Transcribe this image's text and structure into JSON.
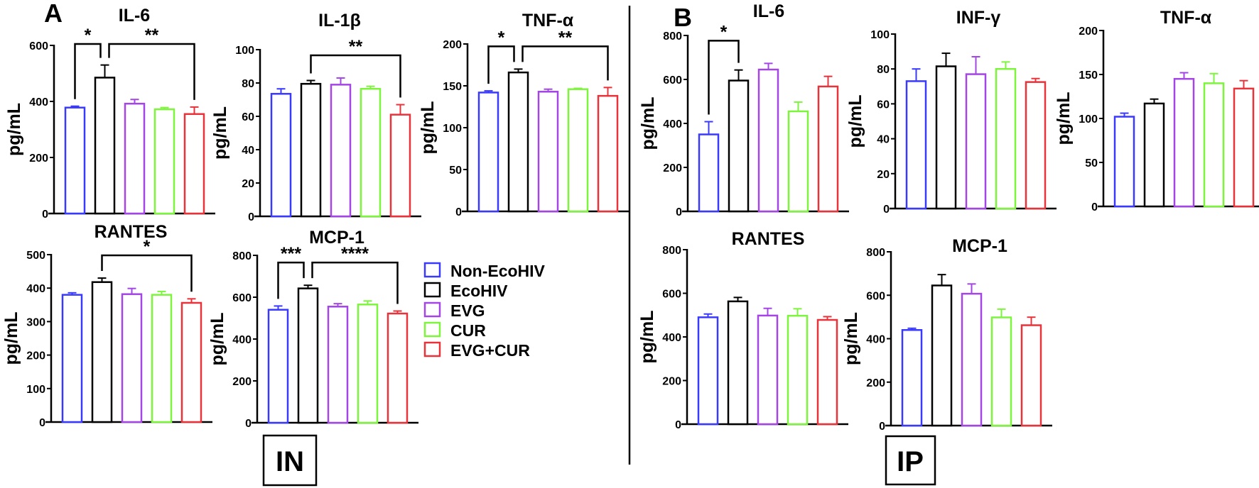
{
  "panels": {
    "a": "A",
    "b": "B"
  },
  "box_labels": {
    "a": "IN",
    "b": "IP"
  },
  "legend": [
    {
      "label": "Non-EcoHIV",
      "color": "#3a3aff"
    },
    {
      "label": "EcoHIV",
      "color": "#000000"
    },
    {
      "label": "EVG",
      "color": "#a445e6"
    },
    {
      "label": "CUR",
      "color": "#7cf53c"
    },
    {
      "label": "EVG+CUR",
      "color": "#e8333b"
    }
  ],
  "chart_data": [
    {
      "type": "bar",
      "panel": "A",
      "title": "IL-6",
      "ylabel": "pg/mL",
      "ylim": [
        0,
        600
      ],
      "yticks": [
        "0",
        "200",
        "400",
        "600"
      ],
      "categories": [
        "Non-EcoHIV",
        "EcoHIV",
        "EVG",
        "CUR",
        "EVG+CUR"
      ],
      "values": [
        378,
        485,
        392,
        372,
        355
      ],
      "errors": [
        5,
        45,
        15,
        6,
        25
      ],
      "significance": [
        {
          "from": 0,
          "to": 1,
          "label": "*"
        },
        {
          "from": 1,
          "to": 4,
          "label": "**"
        }
      ]
    },
    {
      "type": "bar",
      "panel": "A",
      "title": "IL-1β",
      "ylabel": "pg/mL",
      "ylim": [
        0,
        100
      ],
      "yticks": [
        "0",
        "20",
        "40",
        "60",
        "80",
        "100"
      ],
      "categories": [
        "Non-EcoHIV",
        "EcoHIV",
        "EVG",
        "CUR",
        "EVG+CUR"
      ],
      "values": [
        73.5,
        79.5,
        79,
        76.5,
        61
      ],
      "errors": [
        3,
        2,
        4,
        1.5,
        6
      ],
      "significance": [
        {
          "from": 1,
          "to": 4,
          "label": "**"
        }
      ]
    },
    {
      "type": "bar",
      "panel": "A",
      "title": "TNF-α",
      "ylabel": "pg/mL",
      "ylim": [
        0,
        200
      ],
      "yticks": [
        "0",
        "50",
        "100",
        "150",
        "200"
      ],
      "categories": [
        "Non-EcoHIV",
        "EcoHIV",
        "EVG",
        "CUR",
        "EVG+CUR"
      ],
      "values": [
        142,
        166,
        143,
        146,
        138
      ],
      "errors": [
        2,
        4,
        3,
        1,
        10
      ],
      "significance": [
        {
          "from": 0,
          "to": 1,
          "label": "*"
        },
        {
          "from": 1,
          "to": 4,
          "label": "**"
        }
      ]
    },
    {
      "type": "bar",
      "panel": "A",
      "title": "RANTES",
      "ylabel": "pg/mL",
      "ylim": [
        0,
        500
      ],
      "yticks": [
        "0",
        "100",
        "200",
        "300",
        "400",
        "500"
      ],
      "categories": [
        "Non-EcoHIV",
        "EcoHIV",
        "EVG",
        "CUR",
        "EVG+CUR"
      ],
      "values": [
        380,
        418,
        382,
        380,
        356
      ],
      "errors": [
        6,
        12,
        17,
        10,
        12
      ],
      "significance": [
        {
          "from": 1,
          "to": 4,
          "label": "*"
        }
      ]
    },
    {
      "type": "bar",
      "panel": "A",
      "title": "MCP-1",
      "ylabel": "pg/mL",
      "ylim": [
        0,
        800
      ],
      "yticks": [
        "0",
        "200",
        "400",
        "600",
        "800"
      ],
      "categories": [
        "Non-EcoHIV",
        "EcoHIV",
        "EVG",
        "CUR",
        "EVG+CUR"
      ],
      "values": [
        540,
        642,
        555,
        565,
        522
      ],
      "errors": [
        18,
        15,
        14,
        17,
        12
      ],
      "significance": [
        {
          "from": 0,
          "to": 1,
          "label": "***"
        },
        {
          "from": 1,
          "to": 4,
          "label": "****"
        }
      ]
    },
    {
      "type": "bar",
      "panel": "B",
      "title": "IL-6",
      "ylabel": "pg/mL",
      "ylim": [
        0,
        800
      ],
      "yticks": [
        "0",
        "200",
        "400",
        "600",
        "800"
      ],
      "categories": [
        "Non-EcoHIV",
        "EcoHIV",
        "EVG",
        "CUR",
        "EVG+CUR"
      ],
      "values": [
        350,
        595,
        645,
        455,
        568
      ],
      "errors": [
        58,
        48,
        28,
        42,
        46
      ],
      "significance": [
        {
          "from": 0,
          "to": 1,
          "label": "*"
        }
      ]
    },
    {
      "type": "bar",
      "panel": "B",
      "title": "INF-γ",
      "ylabel": "pg/mL",
      "ylim": [
        0,
        100
      ],
      "yticks": [
        "0",
        "20",
        "40",
        "60",
        "80",
        "100"
      ],
      "categories": [
        "Non-EcoHIV",
        "EcoHIV",
        "EVG",
        "CUR",
        "EVG+CUR"
      ],
      "values": [
        73,
        81.5,
        77,
        80,
        72.5
      ],
      "errors": [
        7,
        7.5,
        10,
        4,
        2
      ],
      "significance": []
    },
    {
      "type": "bar",
      "panel": "B",
      "title": "TNF-α",
      "ylabel": "pg/mL",
      "ylim": [
        0,
        200
      ],
      "yticks": [
        "0",
        "50",
        "100",
        "150",
        "200"
      ],
      "categories": [
        "Non-EcoHIV",
        "EcoHIV",
        "EVG",
        "CUR",
        "EVG+CUR"
      ],
      "values": [
        102,
        117,
        145,
        140,
        134
      ],
      "errors": [
        4,
        5,
        7,
        11,
        9
      ],
      "significance": []
    },
    {
      "type": "bar",
      "panel": "B",
      "title": "RANTES",
      "ylabel": "pg/mL",
      "ylim": [
        0,
        800
      ],
      "yticks": [
        "0",
        "200",
        "400",
        "600",
        "800"
      ],
      "categories": [
        "Non-EcoHIV",
        "EcoHIV",
        "EVG",
        "CUR",
        "EVG+CUR"
      ],
      "values": [
        490,
        563,
        498,
        497,
        478
      ],
      "errors": [
        15,
        18,
        33,
        32,
        15
      ],
      "significance": []
    },
    {
      "type": "bar",
      "panel": "B",
      "title": "MCP-1",
      "ylabel": "pg/mL",
      "ylim": [
        0,
        800
      ],
      "yticks": [
        "0",
        "200",
        "400",
        "600",
        "800"
      ],
      "categories": [
        "Non-EcoHIV",
        "EcoHIV",
        "EVG",
        "CUR",
        "EVG+CUR"
      ],
      "values": [
        440,
        645,
        607,
        498,
        462
      ],
      "errors": [
        8,
        50,
        45,
        38,
        37
      ],
      "significance": []
    }
  ]
}
